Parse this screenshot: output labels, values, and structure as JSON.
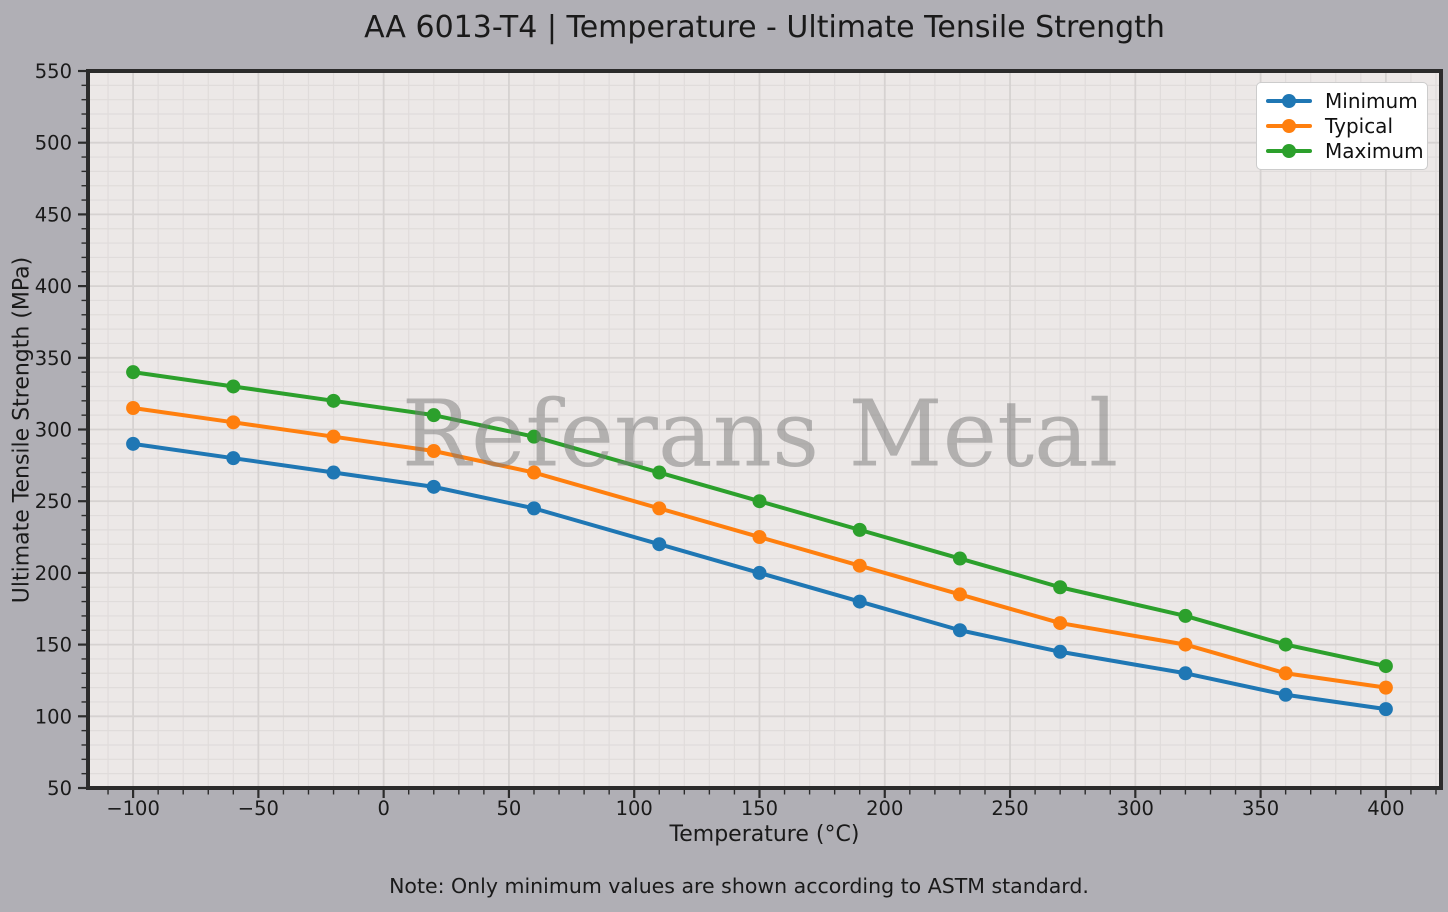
{
  "title": "AA 6013-T4 | Temperature - Ultimate Tensile Strength",
  "watermark": "Referans Metal",
  "note": "Note: Only minimum values are shown according to ASTM standard.",
  "chart_data": {
    "type": "line",
    "title": "AA 6013-T4 | Temperature - Ultimate Tensile Strength",
    "xlabel": "Temperature (°C)",
    "ylabel": "Ultimate Tensile Strength (MPa)",
    "x": [
      -100,
      -60,
      -20,
      20,
      60,
      110,
      150,
      190,
      230,
      270,
      320,
      360,
      400
    ],
    "series": [
      {
        "name": "Minimum",
        "color": "#1f77b4",
        "values": [
          290,
          280,
          270,
          260,
          245,
          220,
          200,
          180,
          160,
          145,
          130,
          115,
          105
        ]
      },
      {
        "name": "Typical",
        "color": "#ff7f0e",
        "values": [
          315,
          305,
          295,
          285,
          270,
          245,
          225,
          205,
          185,
          165,
          150,
          130,
          120
        ]
      },
      {
        "name": "Maximum",
        "color": "#2ca02c",
        "values": [
          340,
          330,
          320,
          310,
          295,
          270,
          250,
          230,
          210,
          190,
          170,
          150,
          135
        ]
      }
    ],
    "xlim": [
      -118,
      422
    ],
    "ylim": [
      50,
      550
    ],
    "x_ticks": [
      -100,
      -50,
      0,
      50,
      100,
      150,
      200,
      250,
      300,
      350,
      400
    ],
    "y_ticks": [
      50,
      100,
      150,
      200,
      250,
      300,
      350,
      400,
      450,
      500,
      550
    ],
    "minor_grid_step": 10,
    "grid": true,
    "legend_position": "upper right",
    "colors": {
      "figure_bg": "#b0afb5",
      "plot_bg": "#ece8e7",
      "grid_major": "#d6d2d1",
      "grid_minor": "#e0dcdb",
      "spine": "#2b2b2b",
      "text": "#1a1a1a",
      "watermark_rgba": "rgba(120,120,120,0.5)",
      "legend_bg": "#ffffff",
      "legend_border": "#cccccc",
      "legend_text": "#111111"
    }
  }
}
